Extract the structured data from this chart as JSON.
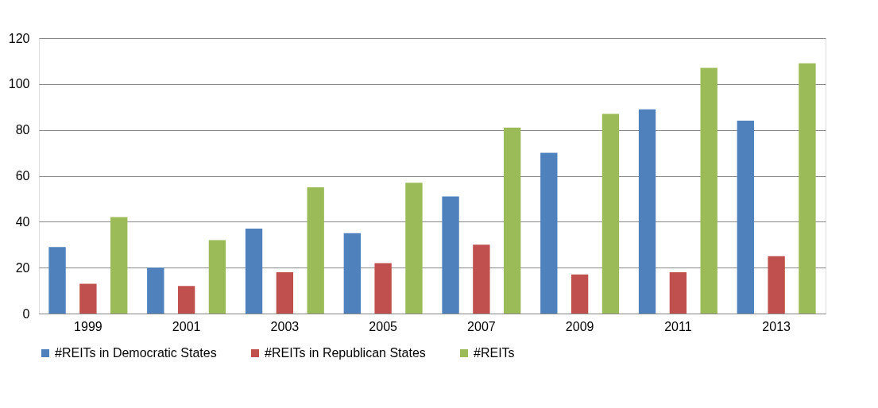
{
  "chart_data": {
    "type": "bar",
    "categories": [
      "1999",
      "2001",
      "2003",
      "2005",
      "2007",
      "2009",
      "2011",
      "2013"
    ],
    "series": [
      {
        "name": "#REITs in Democratic States",
        "color": "#4f81bd",
        "values": [
          29,
          20,
          37,
          35,
          51,
          70,
          89,
          84
        ]
      },
      {
        "name": "#REITs in Republican States",
        "color": "#c0504d",
        "values": [
          13,
          12,
          18,
          22,
          30,
          17,
          18,
          25
        ]
      },
      {
        "name": "#REITs",
        "color": "#9bbb59",
        "values": [
          42,
          32,
          55,
          57,
          81,
          87,
          107,
          109
        ]
      }
    ],
    "ylim": [
      0,
      120
    ],
    "yticks": [
      0,
      20,
      40,
      60,
      80,
      100,
      120
    ],
    "grid": "y",
    "legend": "bottom"
  }
}
